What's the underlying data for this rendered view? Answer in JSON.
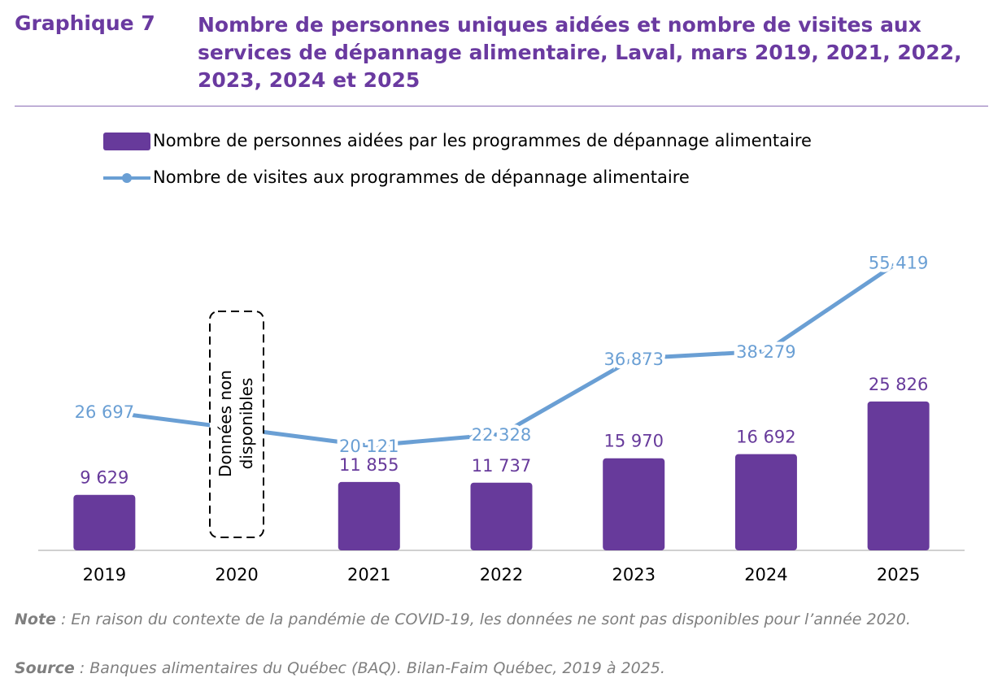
{
  "chart_data": {
    "type": "combo",
    "label": "Graphique 7",
    "title": "Nombre de personnes uniques aidées et nombre de visites aux services de dépannage alimentaire, Laval, mars 2019, 2021, 2022, 2023, 2024 et 2025",
    "categories": [
      "2019",
      "2020",
      "2021",
      "2022",
      "2023",
      "2024",
      "2025"
    ],
    "series": [
      {
        "name": "Nombre de personnes aidées par les programmes de dépannage alimentaire",
        "type": "bar",
        "color": "#673a9b",
        "values": [
          9629,
          null,
          11855,
          11737,
          15970,
          16692,
          25826
        ],
        "value_labels": [
          "9 629",
          null,
          "11 855",
          "11 737",
          "15 970",
          "16 692",
          "25 826"
        ]
      },
      {
        "name": "Nombre de visites aux programmes de dépannage alimentaire",
        "type": "line",
        "axis": "y2",
        "color": "#6a9fd4",
        "values": [
          26697,
          null,
          20121,
          22328,
          36873,
          38279,
          55419
        ],
        "value_labels": [
          "26 697",
          null,
          "20 121",
          "22 328",
          "36 873",
          "38 279",
          "55 419"
        ]
      }
    ],
    "ylim": [
      0,
      56400
    ],
    "y2lim": [
      0,
      62500
    ],
    "annotation": "Données non disponibles",
    "note_label": "Note",
    "note": " : En raison du contexte de la pandémie de COVID-19, les données ne sont pas disponibles pour l’année 2020.",
    "source_label": "Source",
    "source": " : Banques alimentaires du Québec (BAQ). Bilan-Faim Québec, 2019 à 2025."
  }
}
